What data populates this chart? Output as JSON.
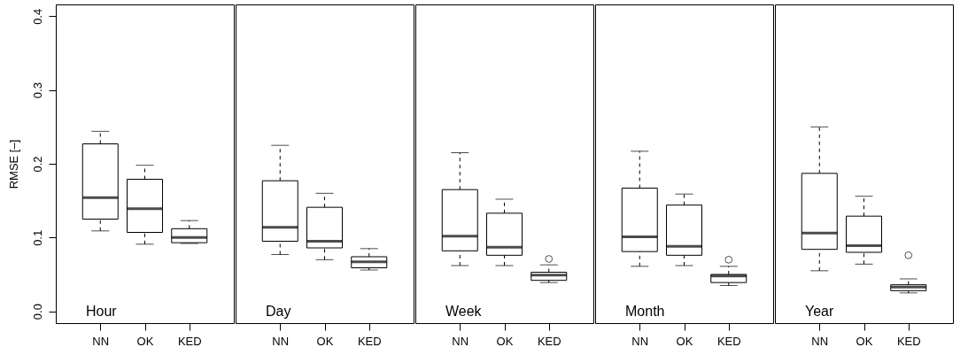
{
  "chart_data": [
    {
      "type": "box",
      "title": "Hour",
      "ylabel": "RMSE [–]",
      "categories": [
        "NN",
        "OK",
        "KED"
      ],
      "ylim": [
        -0.016,
        0.416
      ],
      "yticks": [
        {
          "value": 0,
          "label": "0.0"
        },
        0.1,
        0.2,
        0.3,
        0.4
      ],
      "grid": false,
      "boxes": [
        {
          "low": 0.109,
          "q1": 0.125,
          "median": 0.154,
          "q3": 0.227,
          "high": 0.244
        },
        {
          "low": 0.091,
          "q1": 0.107,
          "median": 0.139,
          "q3": 0.179,
          "high": 0.198
        },
        {
          "low": 0.092,
          "q1": 0.093,
          "median": 0.1,
          "q3": 0.112,
          "high": 0.123
        }
      ]
    },
    {
      "type": "box",
      "title": "Day",
      "categories": [
        "NN",
        "OK",
        "KED"
      ],
      "ylim": [
        -0.016,
        0.416
      ],
      "yticks": [
        0.0,
        0.1,
        0.2,
        0.3,
        0.4
      ],
      "grid": false,
      "tick_labels": "x",
      "boxes": [
        {
          "low": 0.077,
          "q1": 0.095,
          "median": 0.114,
          "q3": 0.177,
          "high": 0.225
        },
        {
          "low": 0.07,
          "q1": 0.086,
          "median": 0.095,
          "q3": 0.141,
          "high": 0.16
        },
        {
          "low": 0.056,
          "q1": 0.059,
          "median": 0.067,
          "q3": 0.074,
          "high": 0.085
        }
      ]
    },
    {
      "type": "box",
      "title": "Week",
      "categories": [
        "NN",
        "OK",
        "KED"
      ],
      "ylim": [
        -0.016,
        0.416
      ],
      "yticks": [
        0.0,
        0.1,
        0.2,
        0.3,
        0.4
      ],
      "grid": false,
      "tick_labels": "x",
      "boxes": [
        {
          "low": 0.062,
          "q1": 0.082,
          "median": 0.102,
          "q3": 0.165,
          "high": 0.215
        },
        {
          "low": 0.062,
          "q1": 0.076,
          "median": 0.087,
          "q3": 0.133,
          "high": 0.152
        },
        {
          "low": 0.039,
          "q1": 0.042,
          "median": 0.049,
          "q3": 0.053,
          "high": 0.063,
          "outliers": [
            0.071
          ]
        }
      ]
    },
    {
      "type": "box",
      "title": "Month",
      "categories": [
        "NN",
        "OK",
        "KED"
      ],
      "ylim": [
        -0.016,
        0.416
      ],
      "yticks": [
        0.0,
        0.1,
        0.2,
        0.3,
        0.4
      ],
      "grid": false,
      "tick_labels": "x",
      "boxes": [
        {
          "low": 0.061,
          "q1": 0.081,
          "median": 0.101,
          "q3": 0.167,
          "high": 0.217
        },
        {
          "low": 0.062,
          "q1": 0.076,
          "median": 0.088,
          "q3": 0.144,
          "high": 0.159
        },
        {
          "low": 0.035,
          "q1": 0.039,
          "median": 0.048,
          "q3": 0.05,
          "high": 0.061,
          "outliers": [
            0.07
          ]
        }
      ]
    },
    {
      "type": "box",
      "title": "Year",
      "categories": [
        "NN",
        "OK",
        "KED"
      ],
      "ylim": [
        -0.016,
        0.416
      ],
      "yticks": [
        0.0,
        0.1,
        0.2,
        0.3,
        0.4
      ],
      "grid": false,
      "tick_labels": "x",
      "boxes": [
        {
          "low": 0.055,
          "q1": 0.084,
          "median": 0.106,
          "q3": 0.187,
          "high": 0.25
        },
        {
          "low": 0.064,
          "q1": 0.08,
          "median": 0.089,
          "q3": 0.129,
          "high": 0.156
        },
        {
          "low": 0.025,
          "q1": 0.028,
          "median": 0.033,
          "q3": 0.036,
          "high": 0.044,
          "outliers": [
            0.076
          ]
        }
      ]
    }
  ]
}
